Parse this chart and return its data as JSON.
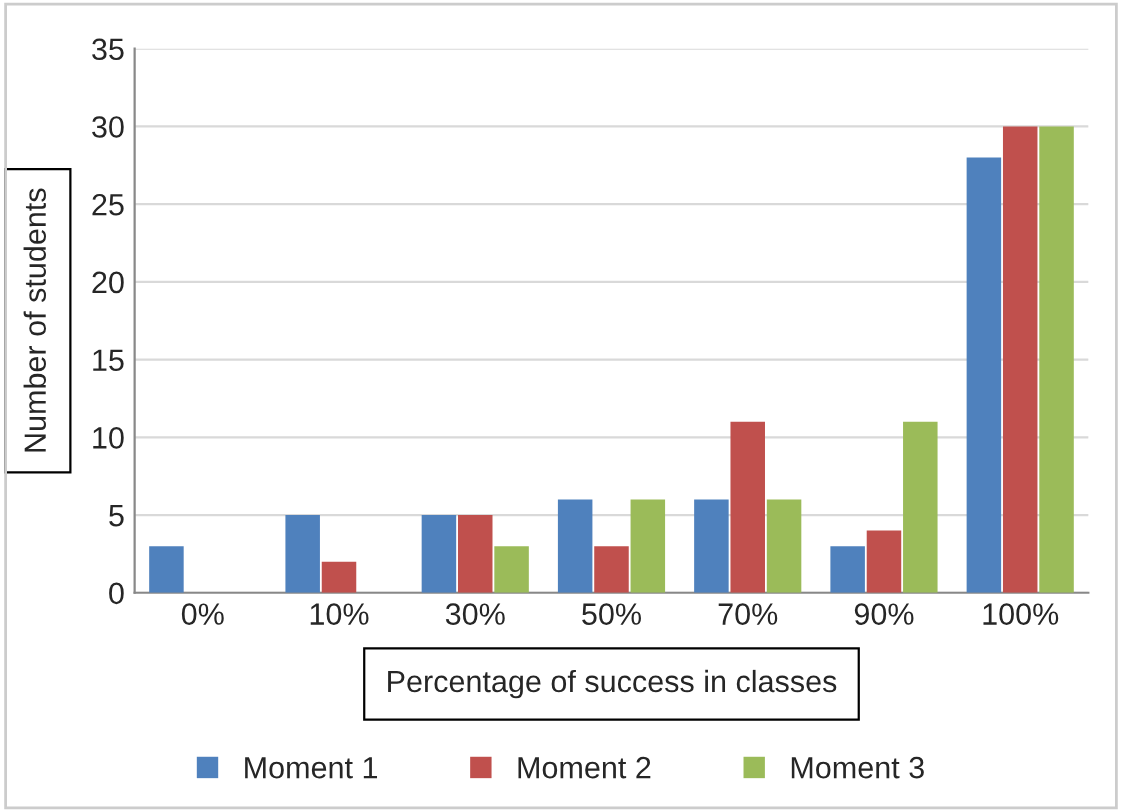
{
  "chart_data": {
    "type": "bar",
    "xlabel": "Percentage of success in classes",
    "ylabel": "Number of students",
    "categories": [
      "0%",
      "10%",
      "30%",
      "50%",
      "70%",
      "90%",
      "100%"
    ],
    "series": [
      {
        "name": "Moment 1",
        "color": "#4f81bd",
        "values": [
          3,
          5,
          5,
          6,
          6,
          3,
          28
        ]
      },
      {
        "name": "Moment 2",
        "color": "#c0504d",
        "values": [
          0,
          2,
          5,
          3,
          11,
          4,
          30
        ]
      },
      {
        "name": "Moment 3",
        "color": "#9bbb59",
        "values": [
          0,
          0,
          3,
          6,
          6,
          11,
          30
        ]
      }
    ],
    "ylim": [
      0,
      35
    ],
    "yticks": [
      0,
      5,
      10,
      15,
      20,
      25,
      30,
      35
    ],
    "grid": "y",
    "legend": "bottom"
  }
}
